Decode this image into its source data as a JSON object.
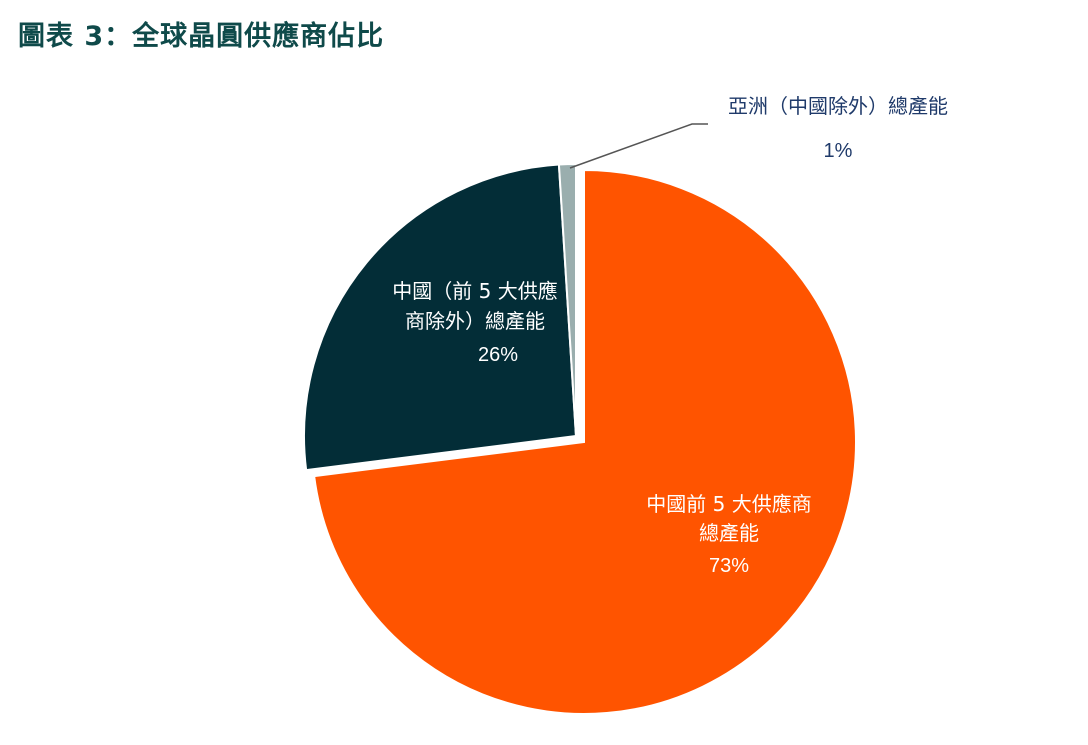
{
  "title": "圖表 3：全球晶圓供應商佔比",
  "chart_data": {
    "type": "pie",
    "title": "圖表 3：全球晶圓供應商佔比",
    "slices": [
      {
        "label_lines": [
          "中國前 5 大供應商",
          "總產能"
        ],
        "value": 73,
        "pct_text": "73%",
        "color": "#ff5400",
        "label_color": "#ffffff"
      },
      {
        "label_lines": [
          "中國（前 5 大供應",
          "商除外）總產能"
        ],
        "value": 26,
        "pct_text": "26%",
        "color": "#032d37",
        "label_color": "#ffffff"
      },
      {
        "label_lines": [
          "亞洲（中國除外）總產能"
        ],
        "value": 1,
        "pct_text": "1%",
        "color": "#9aaeae",
        "label_color": "#1f3a6a"
      }
    ]
  }
}
